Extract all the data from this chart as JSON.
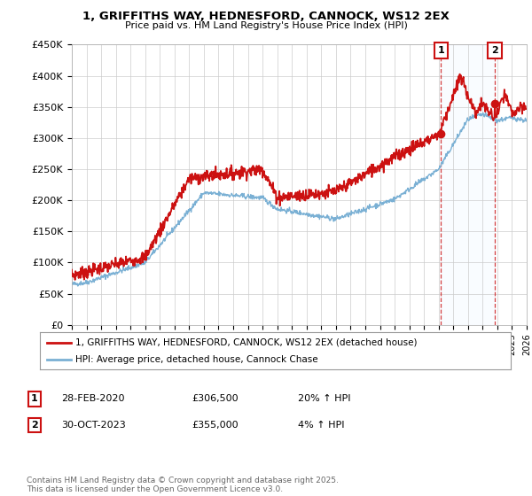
{
  "title": "1, GRIFFITHS WAY, HEDNESFORD, CANNOCK, WS12 2EX",
  "subtitle": "Price paid vs. HM Land Registry's House Price Index (HPI)",
  "ylabel_ticks": [
    "£0",
    "£50K",
    "£100K",
    "£150K",
    "£200K",
    "£250K",
    "£300K",
    "£350K",
    "£400K",
    "£450K"
  ],
  "ylim": [
    0,
    450000
  ],
  "xlim_start": 1995.0,
  "xlim_end": 2026.0,
  "hpi_color": "#7ab0d4",
  "price_color": "#cc1111",
  "dashed_color": "#cc1111",
  "shade_color": "#ddeeff",
  "marker1_date": 2020.16,
  "marker1_price": 306500,
  "marker1_label": "1",
  "marker2_date": 2023.83,
  "marker2_price": 355000,
  "marker2_label": "2",
  "legend_line1": "1, GRIFFITHS WAY, HEDNESFORD, CANNOCK, WS12 2EX (detached house)",
  "legend_line2": "HPI: Average price, detached house, Cannock Chase",
  "table_row1": [
    "1",
    "28-FEB-2020",
    "£306,500",
    "20% ↑ HPI"
  ],
  "table_row2": [
    "2",
    "30-OCT-2023",
    "£355,000",
    "4% ↑ HPI"
  ],
  "footnote": "Contains HM Land Registry data © Crown copyright and database right 2025.\nThis data is licensed under the Open Government Licence v3.0.",
  "background_color": "#ffffff",
  "grid_color": "#cccccc"
}
